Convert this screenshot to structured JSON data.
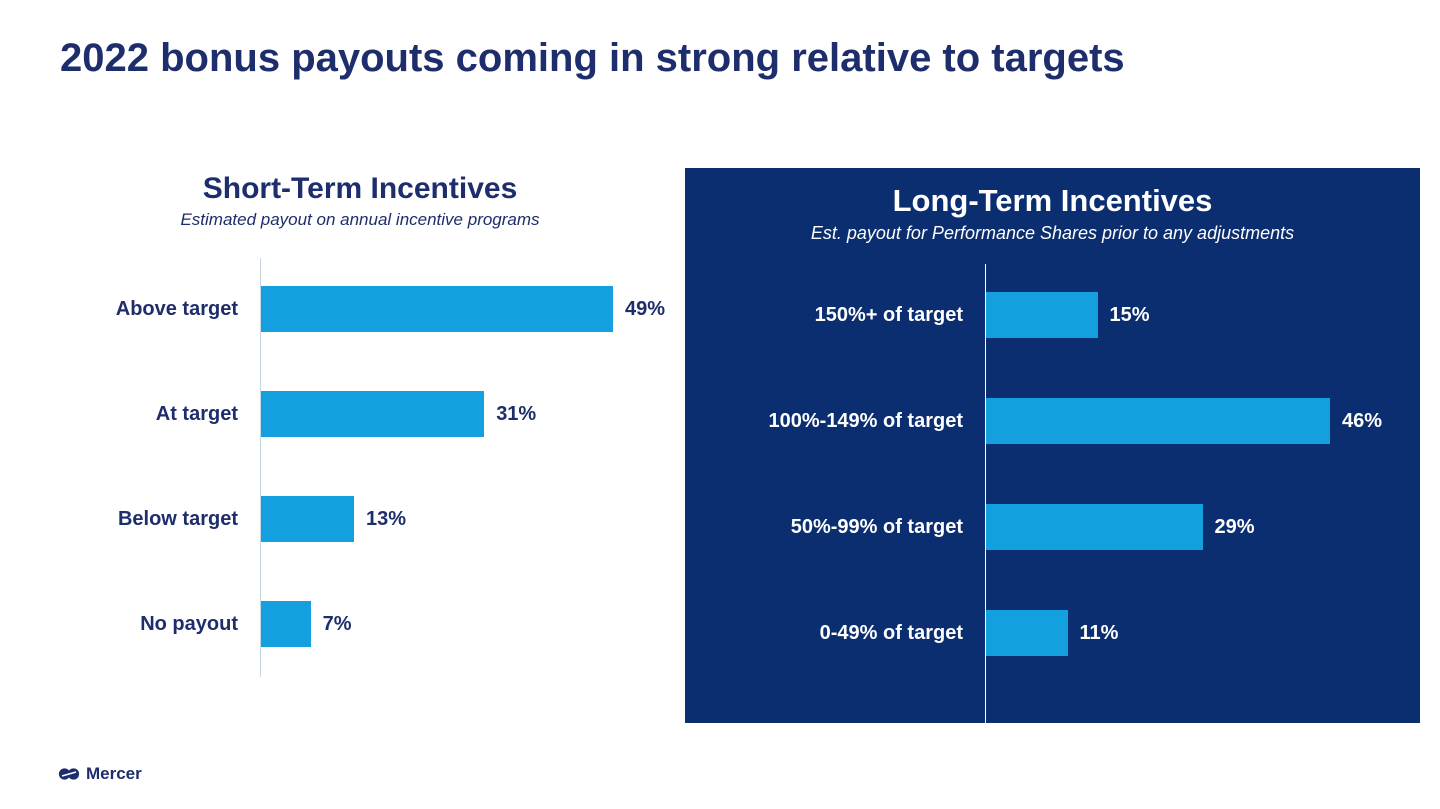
{
  "slide": {
    "title": "2022 bonus payouts coming in strong relative to targets",
    "brand": {
      "name": "Mercer"
    }
  },
  "colors": {
    "navy_text": "#1e2d6b",
    "panel_navy": "#0b2e70",
    "bar_blue": "#14a0de",
    "axis_light": "#c7d4e2",
    "axis_white": "#ffffff"
  },
  "chart_data": [
    {
      "type": "bar",
      "orientation": "horizontal",
      "title": "Short-Term Incentives",
      "subtitle": "Estimated payout on annual incentive programs",
      "categories": [
        "Above target",
        "At target",
        "Below target",
        "No payout"
      ],
      "values": [
        49,
        31,
        13,
        7
      ],
      "value_labels": [
        "49%",
        "31%",
        "13%",
        "7%"
      ],
      "xlim": [
        0,
        56
      ],
      "grid": false,
      "legend": false
    },
    {
      "type": "bar",
      "orientation": "horizontal",
      "title": "Long-Term Incentives",
      "subtitle": "Est. payout for Performance Shares prior to any adjustments",
      "categories": [
        "150%+ of target",
        "100%-149% of target",
        "50%-99% of target",
        "0-49% of target"
      ],
      "values": [
        15,
        46,
        29,
        11
      ],
      "value_labels": [
        "15%",
        "46%",
        "29%",
        "11%"
      ],
      "xlim": [
        0,
        58
      ],
      "grid": false,
      "legend": false
    }
  ]
}
